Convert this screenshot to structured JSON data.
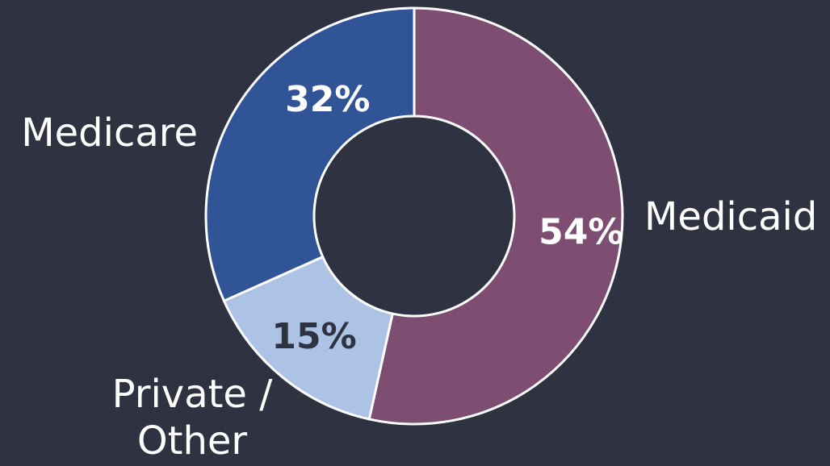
{
  "chart_data": {
    "type": "pie",
    "donut": true,
    "categories": [
      "Medicaid",
      "Private / Other",
      "Medicare"
    ],
    "values": [
      54,
      15,
      32
    ],
    "value_labels": [
      "54%",
      "15%",
      "32%"
    ],
    "label_lines": [
      [
        "Medicaid"
      ],
      [
        "Private /",
        "Other"
      ],
      [
        "Medicare"
      ]
    ],
    "colors": [
      "#7e4e72",
      "#adc3e6",
      "#315497"
    ],
    "label_colors": [
      "#ffffff",
      "#2f3341",
      "#ffffff"
    ],
    "start_angle_deg": 0,
    "direction": "clockwise",
    "legend": "none"
  }
}
